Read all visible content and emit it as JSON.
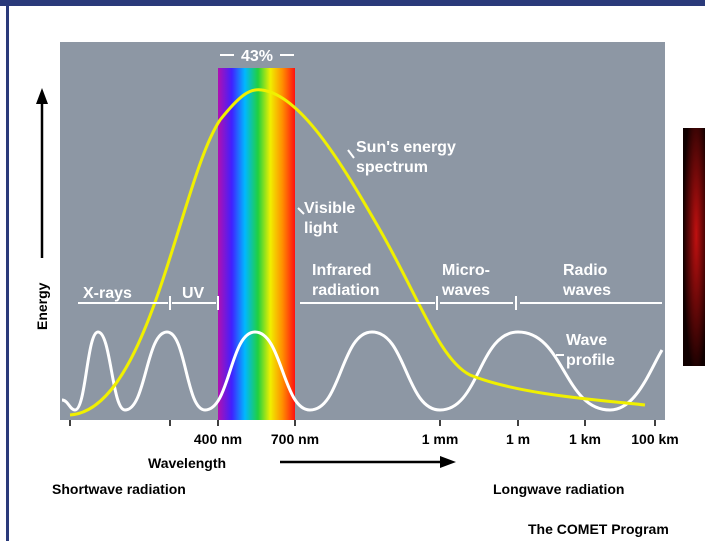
{
  "diagram": {
    "top_label": "43%",
    "labels": {
      "sun": [
        "Sun's energy",
        "spectrum"
      ],
      "visible": [
        "Visible",
        "light"
      ],
      "xrays": "X-rays",
      "uv": "UV",
      "infrared": [
        "Infrared",
        "radiation"
      ],
      "micro": [
        "Micro-",
        "waves"
      ],
      "radio": [
        "Radio",
        "waves"
      ],
      "wave": [
        "Wave",
        "profile"
      ]
    },
    "y_axis": "Energy",
    "x_ticks": [
      "400 nm",
      "700 nm",
      "1 mm",
      "1 m",
      "1 km",
      "100 km"
    ],
    "x_axis": "Wavelength",
    "shortwave": "Shortwave radiation",
    "longwave": "Longwave radiation",
    "credit": "The COMET Program"
  }
}
